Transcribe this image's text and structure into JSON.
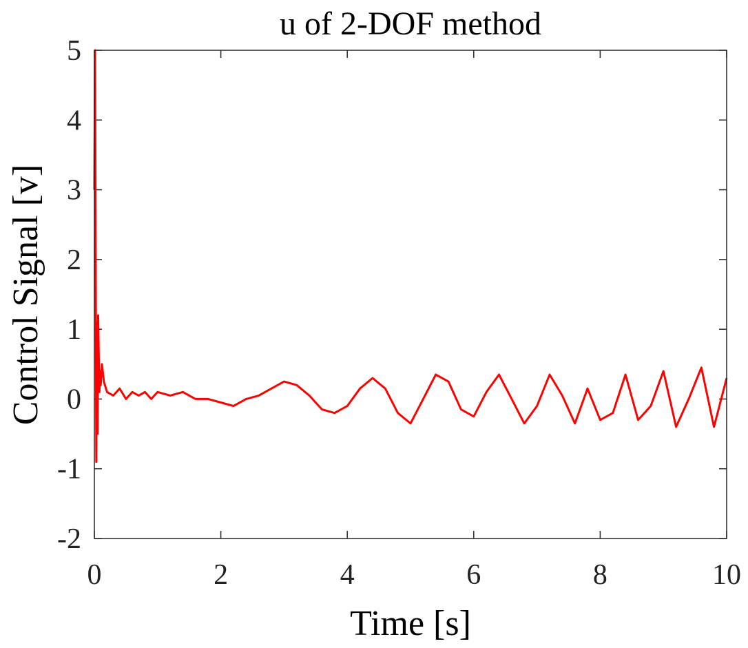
{
  "chart_data": {
    "type": "line",
    "title": "u of 2-DOF method",
    "xlabel": "Time [s]",
    "ylabel": "Control Signal [v]",
    "xlim": [
      0,
      10
    ],
    "ylim": [
      -2,
      5
    ],
    "xticks": [
      0,
      2,
      4,
      6,
      8,
      10
    ],
    "yticks": [
      -2,
      -1,
      0,
      1,
      2,
      3,
      4,
      5
    ],
    "xtick_labels": [
      "0",
      "2",
      "4",
      "6",
      "8",
      "10"
    ],
    "ytick_labels": [
      "-2",
      "-1",
      "0",
      "1",
      "2",
      "3",
      "4",
      "5"
    ],
    "grid": false,
    "series": [
      {
        "name": "u",
        "color": "#ff0000",
        "x": [
          0.0,
          0.01,
          0.02,
          0.03,
          0.04,
          0.05,
          0.06,
          0.07,
          0.08,
          0.09,
          0.1,
          0.12,
          0.15,
          0.2,
          0.3,
          0.4,
          0.5,
          0.6,
          0.7,
          0.8,
          0.9,
          1.0,
          1.2,
          1.4,
          1.6,
          1.8,
          2.0,
          2.2,
          2.4,
          2.6,
          2.8,
          3.0,
          3.2,
          3.4,
          3.6,
          3.8,
          4.0,
          4.2,
          4.4,
          4.6,
          4.8,
          5.0,
          5.2,
          5.4,
          5.6,
          5.8,
          6.0,
          6.2,
          6.4,
          6.6,
          6.8,
          7.0,
          7.2,
          7.4,
          7.6,
          7.8,
          8.0,
          8.2,
          8.4,
          8.6,
          8.8,
          9.0,
          9.2,
          9.4,
          9.6,
          9.8,
          10.0
        ],
        "y": [
          3.0,
          5.0,
          2.4,
          -0.9,
          1.1,
          -0.5,
          1.2,
          0.6,
          0.1,
          0.4,
          0.2,
          0.5,
          0.25,
          0.1,
          0.05,
          0.15,
          0.0,
          0.1,
          0.05,
          0.1,
          0.0,
          0.1,
          0.05,
          0.1,
          0.0,
          0.0,
          -0.05,
          -0.1,
          0.0,
          0.05,
          0.15,
          0.25,
          0.2,
          0.05,
          -0.15,
          -0.2,
          -0.1,
          0.15,
          0.3,
          0.15,
          -0.2,
          -0.35,
          0.0,
          0.35,
          0.25,
          -0.15,
          -0.25,
          0.1,
          0.35,
          0.0,
          -0.35,
          -0.1,
          0.35,
          0.05,
          -0.35,
          0.15,
          -0.3,
          -0.2,
          0.35,
          -0.3,
          -0.1,
          0.4,
          -0.4,
          0.0,
          0.45,
          -0.4,
          0.3
        ]
      }
    ]
  }
}
